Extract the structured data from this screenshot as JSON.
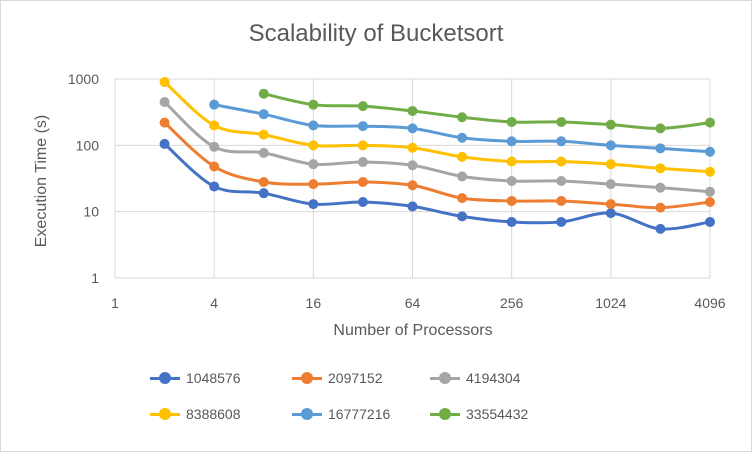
{
  "chart_data": {
    "type": "line",
    "title": "Scalability of Bucketsort",
    "xlabel": "Number of Processors",
    "ylabel": "Execution Time (s)",
    "x_scale": "log2",
    "y_scale": "log10",
    "xlim": [
      1,
      4096
    ],
    "ylim": [
      1,
      1000
    ],
    "x_ticks": [
      "1",
      "4",
      "16",
      "64",
      "256",
      "1024",
      "4096"
    ],
    "y_ticks": [
      "1",
      "10",
      "100",
      "1000"
    ],
    "grid": "horizontal",
    "legend_position": "bottom",
    "x": [
      2,
      4,
      8,
      16,
      32,
      64,
      128,
      256,
      512,
      1024,
      2048,
      4096
    ],
    "series": [
      {
        "name": "1048576",
        "color": "#4472C4",
        "values": [
          105,
          24,
          19,
          13,
          14,
          12,
          8.5,
          7,
          7,
          9.5,
          5.5,
          7
        ]
      },
      {
        "name": "2097152",
        "color": "#ED7D31",
        "values": [
          220,
          48,
          28,
          26,
          28,
          25,
          16,
          14.5,
          14.5,
          13,
          11.5,
          14
        ]
      },
      {
        "name": "4194304",
        "color": "#A5A5A5",
        "values": [
          450,
          95,
          77,
          52,
          56,
          50,
          34,
          29,
          29,
          26,
          23,
          20
        ]
      },
      {
        "name": "8388608",
        "color": "#FFC000",
        "values": [
          900,
          200,
          145,
          100,
          100,
          92,
          67,
          57,
          57,
          52,
          45,
          40
        ]
      },
      {
        "name": "16777216",
        "color": "#5B9BD5",
        "values": [
          null,
          410,
          295,
          200,
          195,
          180,
          130,
          115,
          115,
          100,
          90,
          80
        ]
      },
      {
        "name": "33554432",
        "color": "#70AD47",
        "values": [
          null,
          null,
          600,
          410,
          390,
          330,
          265,
          225,
          225,
          205,
          180,
          220
        ]
      }
    ]
  }
}
